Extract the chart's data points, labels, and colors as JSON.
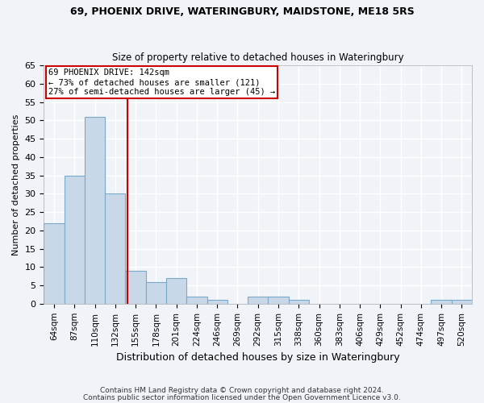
{
  "title1": "69, PHOENIX DRIVE, WATERINGBURY, MAIDSTONE, ME18 5RS",
  "title2": "Size of property relative to detached houses in Wateringbury",
  "xlabel": "Distribution of detached houses by size in Wateringbury",
  "ylabel": "Number of detached properties",
  "categories": [
    "64sqm",
    "87sqm",
    "110sqm",
    "132sqm",
    "155sqm",
    "178sqm",
    "201sqm",
    "224sqm",
    "246sqm",
    "269sqm",
    "292sqm",
    "315sqm",
    "338sqm",
    "360sqm",
    "383sqm",
    "406sqm",
    "429sqm",
    "452sqm",
    "474sqm",
    "497sqm",
    "520sqm"
  ],
  "values": [
    22,
    35,
    51,
    30,
    9,
    6,
    7,
    2,
    1,
    0,
    2,
    2,
    1,
    0,
    0,
    0,
    0,
    0,
    0,
    1,
    1
  ],
  "bar_color": "#c8d8e8",
  "bar_edge_color": "#7aa8c8",
  "bg_color": "#f0f4f8",
  "grid_color": "#ffffff",
  "annotation_text": "69 PHOENIX DRIVE: 142sqm\n← 73% of detached houses are smaller (121)\n27% of semi-detached houses are larger (45) →",
  "annotation_box_color": "#ffffff",
  "annotation_box_edge_color": "#cc0000",
  "vline_color": "#cc0000",
  "vline_x": 3.617,
  "ylim": [
    0,
    65
  ],
  "yticks": [
    0,
    5,
    10,
    15,
    20,
    25,
    30,
    35,
    40,
    45,
    50,
    55,
    60,
    65
  ],
  "footnote1": "Contains HM Land Registry data © Crown copyright and database right 2024.",
  "footnote2": "Contains public sector information licensed under the Open Government Licence v3.0."
}
